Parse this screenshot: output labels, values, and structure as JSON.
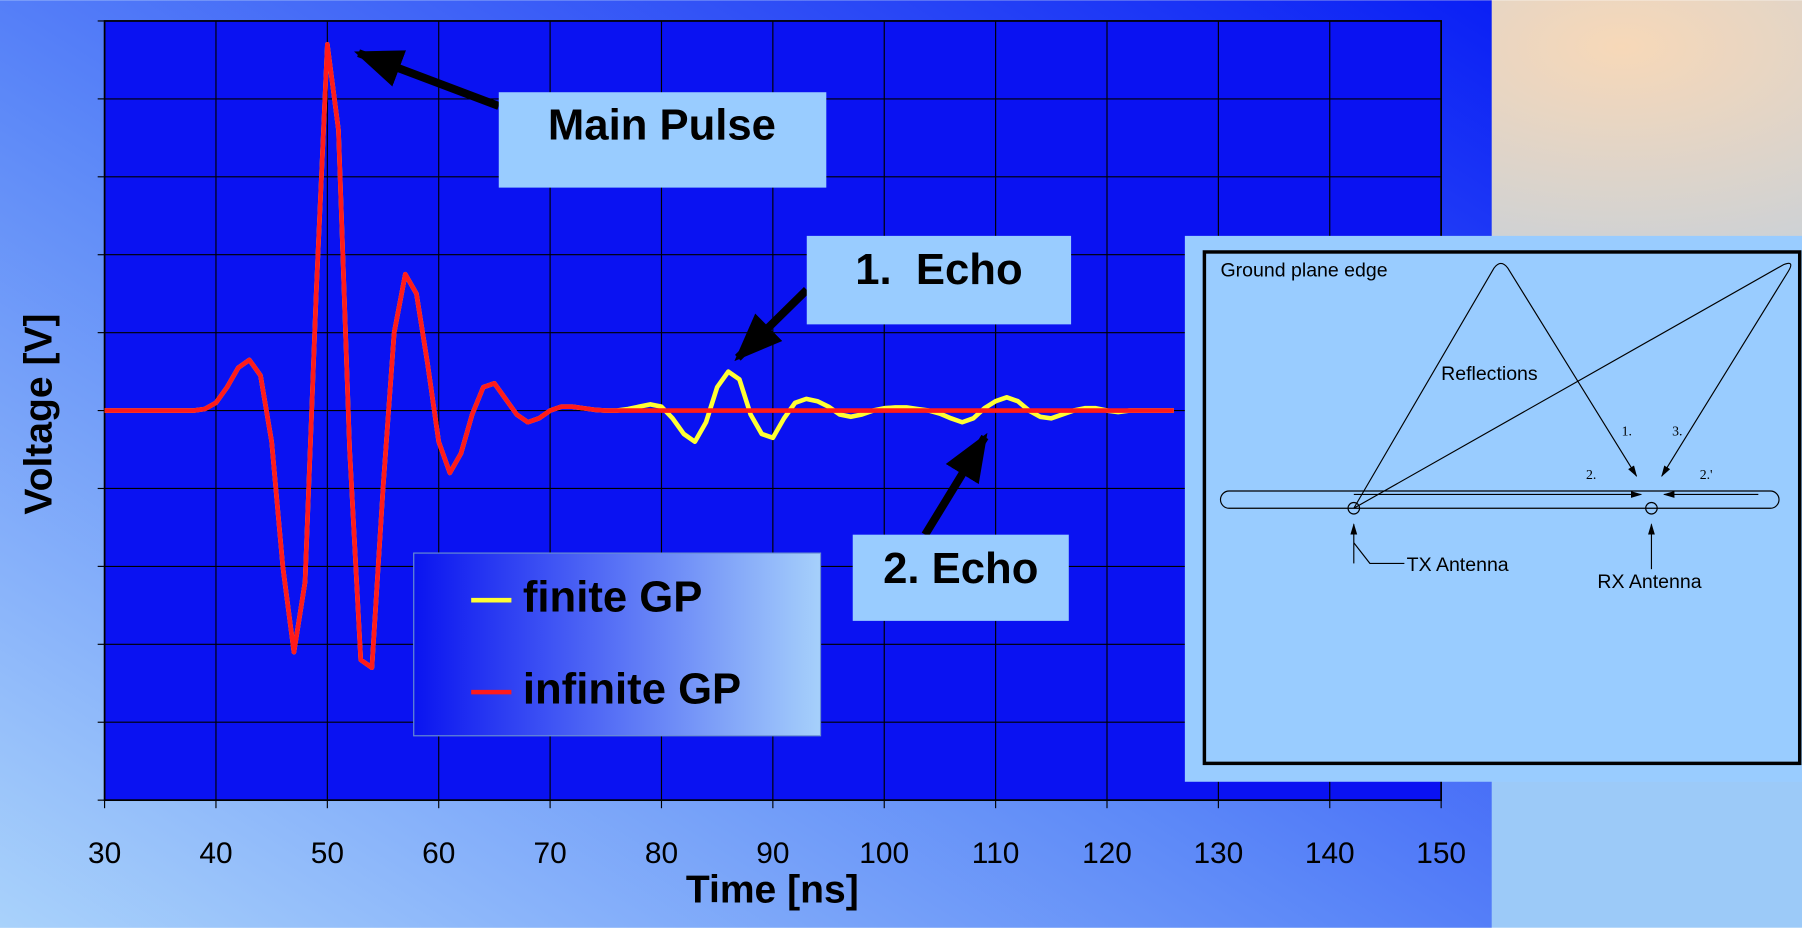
{
  "chart_data": {
    "type": "line",
    "xlabel": "Time [ns]",
    "ylabel": "Voltage [V]",
    "x": [
      30,
      35,
      38,
      39,
      40,
      41,
      42,
      43,
      44,
      45,
      46,
      47,
      48,
      49,
      50,
      51,
      52,
      53,
      54,
      55,
      56,
      57,
      58,
      59,
      60,
      61,
      62,
      63,
      64,
      65,
      66,
      67,
      68,
      69,
      70,
      71,
      72,
      73,
      74,
      75,
      76,
      77,
      78,
      79,
      80,
      81,
      82,
      83,
      84,
      85,
      86,
      87,
      88,
      89,
      90,
      91,
      92,
      93,
      94,
      95,
      96,
      97,
      98,
      99,
      100,
      101,
      102,
      103,
      104,
      105,
      106,
      107,
      108,
      109,
      110,
      111,
      112,
      113,
      114,
      115,
      116,
      117,
      118,
      119,
      120,
      121,
      122,
      123,
      124,
      125,
      126
    ],
    "series": [
      {
        "name": "finite GP",
        "color": "#ffff33",
        "values": [
          0,
          0,
          0,
          0.02,
          0.1,
          0.3,
          0.55,
          0.65,
          0.45,
          -0.4,
          -2.0,
          -3.1,
          -2.2,
          1.5,
          4.7,
          3.6,
          -0.5,
          -3.2,
          -3.3,
          -1.0,
          1.0,
          1.75,
          1.5,
          0.6,
          -0.4,
          -0.8,
          -0.55,
          -0.05,
          0.3,
          0.35,
          0.15,
          -0.05,
          -0.15,
          -0.1,
          0,
          0.05,
          0.05,
          0.03,
          0.01,
          0,
          0,
          0.02,
          0.05,
          0.08,
          0.05,
          -0.1,
          -0.3,
          -0.4,
          -0.15,
          0.3,
          0.5,
          0.4,
          -0.05,
          -0.3,
          -0.35,
          -0.1,
          0.1,
          0.15,
          0.12,
          0.05,
          -0.05,
          -0.08,
          -0.05,
          0,
          0.03,
          0.04,
          0.04,
          0.02,
          0,
          -0.04,
          -0.1,
          -0.15,
          -0.1,
          0.03,
          0.12,
          0.17,
          0.12,
          0,
          -0.08,
          -0.1,
          -0.05,
          0,
          0.03,
          0.03,
          0,
          -0.02,
          0,
          0,
          0,
          0,
          0
        ]
      },
      {
        "name": "infinite GP",
        "color": "#ff1a1a",
        "values": [
          0,
          0,
          0,
          0.02,
          0.1,
          0.3,
          0.55,
          0.65,
          0.45,
          -0.4,
          -2.0,
          -3.1,
          -2.2,
          1.5,
          4.7,
          3.6,
          -0.5,
          -3.2,
          -3.3,
          -1.0,
          1.0,
          1.75,
          1.5,
          0.6,
          -0.4,
          -0.8,
          -0.55,
          -0.05,
          0.3,
          0.35,
          0.15,
          -0.05,
          -0.15,
          -0.1,
          0,
          0.05,
          0.05,
          0.03,
          0.01,
          0,
          0,
          0,
          0,
          0,
          0,
          0,
          0,
          0,
          0,
          0,
          0,
          0,
          0,
          0,
          0,
          0,
          0,
          0,
          0,
          0,
          0,
          0,
          0,
          0,
          0,
          0,
          0,
          0,
          0,
          0,
          0,
          0,
          0,
          0,
          0,
          0,
          0,
          0,
          0,
          0,
          0,
          0,
          0,
          0,
          0,
          0,
          0,
          0,
          0,
          0,
          0
        ]
      }
    ],
    "xlim": [
      30,
      150
    ],
    "xticks": [
      30,
      40,
      50,
      60,
      70,
      80,
      90,
      100,
      110,
      120,
      130,
      140,
      150
    ],
    "ylim": [
      -5,
      5
    ],
    "yticks": [
      -5,
      -4,
      -3,
      -2,
      -1,
      0,
      1,
      2,
      3,
      4,
      5
    ],
    "grid": true,
    "annotations": [
      "Main Pulse",
      "1.  Echo",
      "2. Echo"
    ]
  },
  "inset": {
    "labels": [
      "Ground plane edge",
      "Reflections",
      "1.",
      "3.",
      "2.",
      "2.'",
      "TX Antenna",
      "RX Antenna"
    ]
  }
}
